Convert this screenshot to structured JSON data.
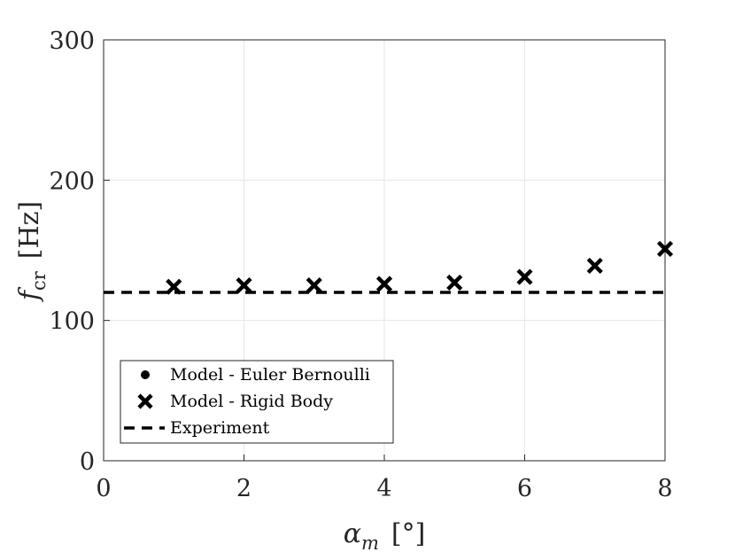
{
  "chart_data": {
    "type": "scatter",
    "title": "",
    "xlabel": {
      "symbol": "α",
      "subscript": "m",
      "unit": "[°]"
    },
    "ylabel": {
      "symbol": "f",
      "subscript": "cr",
      "unit": "[Hz]"
    },
    "xlim": [
      0,
      8
    ],
    "ylim": [
      0,
      300
    ],
    "xticks": [
      "0",
      "2",
      "4",
      "6",
      "8"
    ],
    "yticks": [
      "0",
      "100",
      "200",
      "300"
    ],
    "grid": true,
    "legend_position": "bottom-left",
    "series": [
      {
        "name": "Model - Euler Bernoulli",
        "marker": "dot",
        "x": [],
        "y": []
      },
      {
        "name": "Model - Rigid Body",
        "marker": "x",
        "x": [
          1,
          2,
          3,
          4,
          5,
          6,
          7,
          8
        ],
        "y": [
          124,
          125,
          125,
          126,
          127,
          131,
          139,
          151
        ]
      },
      {
        "name": "Experiment",
        "marker": "dashed-line",
        "x": [
          0,
          8
        ],
        "y": [
          120,
          120
        ]
      }
    ]
  }
}
